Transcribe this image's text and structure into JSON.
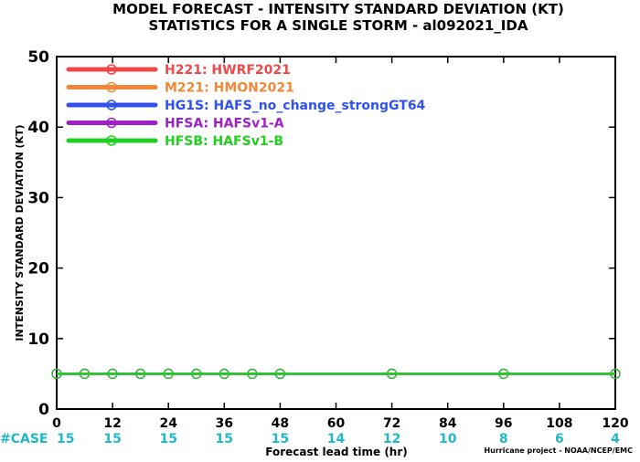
{
  "title": "MODEL FORECAST - INTENSITY STANDARD DEVIATION (KT)",
  "subtitle": "STATISTICS FOR A SINGLE STORM - al092021_IDA",
  "credit": "Hurricane project - NOAA/NCEP/EMC",
  "chart_data": {
    "type": "line",
    "title": "MODEL FORECAST - INTENSITY STANDARD DEVIATION (KT)",
    "subtitle": "STATISTICS FOR A SINGLE STORM - al092021_IDA",
    "xlabel": "Forecast lead time (hr)",
    "ylabel": "INTENSITY STANDARD DEVIATION (KT)",
    "xlim": [
      0,
      120
    ],
    "ylim": [
      0,
      50
    ],
    "xticks": [
      0,
      12,
      24,
      36,
      48,
      60,
      72,
      84,
      96,
      108,
      120
    ],
    "yticks": [
      0,
      10,
      20,
      30,
      40,
      50
    ],
    "grid": false,
    "legend_position": "top-left",
    "case_label": "#CASE",
    "case_x": [
      0,
      12,
      24,
      36,
      48,
      60,
      72,
      84,
      96,
      108,
      120
    ],
    "case_counts": [
      "15",
      "15",
      "15",
      "15",
      "15",
      "14",
      "12",
      "10",
      "8",
      "6",
      "4"
    ],
    "series": [
      {
        "name": "H221",
        "desc": "HWRF2021",
        "color": "#f04848",
        "x": [
          0,
          6,
          12,
          18,
          24,
          30,
          36,
          42,
          48,
          72,
          96,
          120
        ],
        "y": [
          5,
          5,
          5,
          5,
          5,
          5,
          5,
          5,
          5,
          5,
          5,
          5
        ]
      },
      {
        "name": "M221",
        "desc": "HMON2021",
        "color": "#f08838",
        "x": [
          0,
          6,
          12,
          18,
          24,
          30,
          36,
          42,
          48,
          72,
          96,
          120
        ],
        "y": [
          5,
          5,
          5,
          5,
          5,
          5,
          5,
          5,
          5,
          5,
          5,
          5
        ]
      },
      {
        "name": "HG1S",
        "desc": "HAFS_no_change_strongGT64",
        "color": "#3050f0",
        "x": [
          0,
          6,
          12,
          18,
          24,
          30,
          36,
          42,
          48,
          72,
          96,
          120
        ],
        "y": [
          5,
          5,
          5,
          5,
          5,
          5,
          5,
          5,
          5,
          5,
          5,
          5
        ]
      },
      {
        "name": "HFSA",
        "desc": "HAFSv1-A",
        "color": "#a020c8",
        "x": [
          0,
          6,
          12,
          18,
          24,
          30,
          36,
          42,
          48,
          72,
          96,
          120
        ],
        "y": [
          5,
          5,
          5,
          5,
          5,
          5,
          5,
          5,
          5,
          5,
          5,
          5
        ]
      },
      {
        "name": "HFSB",
        "desc": "HAFSv1-B",
        "color": "#20d020",
        "x": [
          0,
          6,
          12,
          18,
          24,
          30,
          36,
          42,
          48,
          72,
          96,
          120
        ],
        "y": [
          5,
          5,
          5,
          5,
          5,
          5,
          5,
          5,
          5,
          5,
          5,
          5
        ]
      }
    ]
  }
}
